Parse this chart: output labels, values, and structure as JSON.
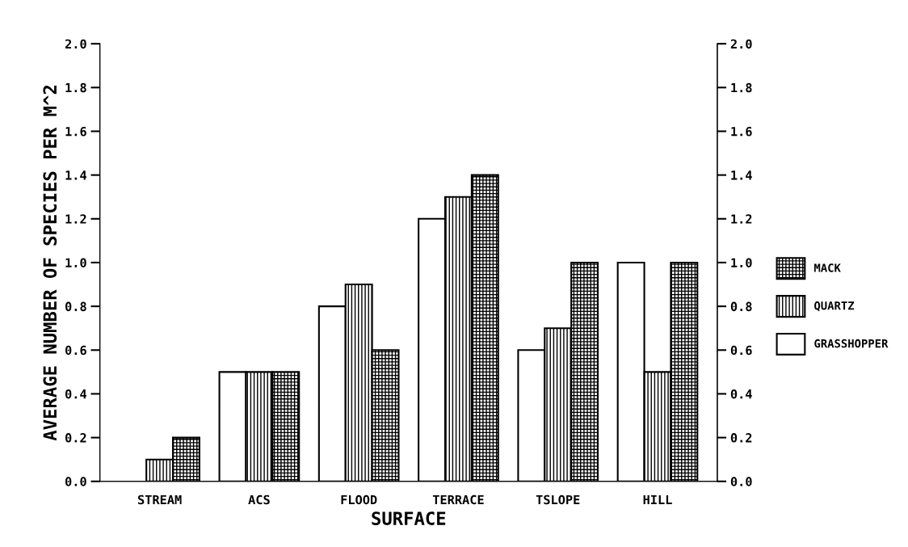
{
  "chart_data": {
    "type": "bar",
    "xlabel": "SURFACE",
    "ylabel": "AVERAGE NUMBER OF SPECIES PER M^2",
    "categories": [
      "STREAM",
      "ACS",
      "FLOOD",
      "TERRACE",
      "TSLOPE",
      "HILL"
    ],
    "series": [
      {
        "name": "GRASSHOPPER",
        "color": "#ffffff",
        "values": [
          null,
          0.5,
          0.8,
          1.2,
          0.6,
          1.0
        ]
      },
      {
        "name": "QUARTZ",
        "color": "#000000",
        "values": [
          0.1,
          0.5,
          0.9,
          1.3,
          0.7,
          0.5
        ]
      },
      {
        "name": "MACK",
        "color": "#000000",
        "values": [
          0.2,
          0.5,
          0.6,
          1.4,
          1.0,
          1.0
        ]
      }
    ],
    "ylim": [
      0,
      2.0
    ],
    "yticks": [
      {
        "value": 0,
        "label": "0.0"
      },
      {
        "value": 0.2,
        "label": "0.2"
      },
      {
        "value": 0.4,
        "label": "0.4"
      },
      {
        "value": 0.6,
        "label": "0.6"
      },
      {
        "value": 0.8,
        "label": "0.8"
      },
      {
        "value": 1.0,
        "label": "1.0"
      },
      {
        "value": 1.2,
        "label": "1.2"
      },
      {
        "value": 1.4,
        "label": "1.4"
      },
      {
        "value": 1.6,
        "label": "1.6"
      },
      {
        "value": 1.8,
        "label": "1.8"
      },
      {
        "value": 2.0,
        "label": "2.0"
      }
    ],
    "y2lim": [
      0,
      2.0
    ],
    "y2ticks": [
      {
        "value": 0,
        "label": "0.0"
      },
      {
        "value": 0.2,
        "label": "0.2"
      },
      {
        "value": 0.4,
        "label": "0.4"
      },
      {
        "value": 0.6,
        "label": "0.6"
      },
      {
        "value": 0.8,
        "label": "0.8"
      },
      {
        "value": 1.0,
        "label": "1.0"
      },
      {
        "value": 1.2,
        "label": "1.2"
      },
      {
        "value": 1.4,
        "label": "1.4"
      },
      {
        "value": 1.6,
        "label": "1.6"
      },
      {
        "value": 1.8,
        "label": "1.8"
      },
      {
        "value": 2.0,
        "label": "2.0"
      }
    ],
    "grid": false,
    "legend": "right"
  }
}
